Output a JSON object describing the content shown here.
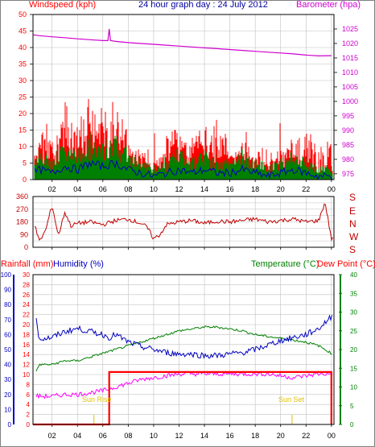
{
  "colors": {
    "wind": "#ff0000",
    "gust_green": "#008000",
    "wind_avg": "#0000c0",
    "barometer": "#d000d0",
    "direction": "#c00000",
    "rain": "#ff0000",
    "humidity": "#0000c0",
    "temperature": "#008000",
    "dewpoint": "#ff00ff",
    "sun": "#e0c000",
    "grid": "#c0c0c0",
    "axis": "#000000"
  },
  "header": {
    "wind_label": "Windspeed (kph)",
    "title": "24 hour graph day : 24 July 2012",
    "baro_label": "Barometer (hpa)"
  },
  "direction_letters": [
    "S",
    "E",
    "N",
    "W",
    "S"
  ],
  "footer_labels": {
    "rain": "Rainfall (mm)",
    "humidity": "Humidity (%)",
    "temperature": "Temperature (°C)",
    "dewpoint": "Dew Point (°C)"
  },
  "sun_labels": {
    "rise": "Sun Rise",
    "set": "Sun Set"
  },
  "chart_data": [
    {
      "type": "line",
      "name": "wind-barometer",
      "x_ticks": [
        "02",
        "04",
        "06",
        "08",
        "10",
        "12",
        "14",
        "16",
        "18",
        "20",
        "22",
        "00"
      ],
      "x_tick_hours": [
        2,
        4,
        6,
        8,
        10,
        12,
        14,
        16,
        18,
        20,
        22,
        24
      ],
      "xlim": [
        0.5,
        24.2
      ],
      "ylim_left": [
        0,
        50
      ],
      "yticks_left": [
        0,
        5,
        10,
        15,
        20,
        25,
        30,
        35,
        40,
        45,
        50
      ],
      "ylim_right": [
        973,
        1030
      ],
      "yticks_right": [
        975,
        980,
        985,
        990,
        995,
        1000,
        1005,
        1010,
        1015,
        1020,
        1025
      ],
      "grid": true,
      "barometer": {
        "hours": [
          0.5,
          1,
          2,
          3,
          4,
          5,
          6,
          6.4,
          6.5,
          6.6,
          7,
          8,
          9,
          10,
          11,
          12,
          13,
          14,
          15,
          16,
          17,
          18,
          19,
          20,
          21,
          22,
          23,
          24
        ],
        "values": [
          1023,
          1022.7,
          1022.3,
          1022,
          1021.6,
          1021.3,
          1021,
          1021,
          1025,
          1021,
          1020.7,
          1020.3,
          1020,
          1019.7,
          1019.4,
          1019.1,
          1018.8,
          1018.5,
          1018.2,
          1017.9,
          1017.6,
          1017.3,
          1017.0,
          1016.7,
          1016.4,
          1016.0,
          1015.7,
          1015.8
        ]
      },
      "wind_peak_kph": 26,
      "wind_avg_hours": [
        0.5,
        1,
        2,
        3,
        4,
        5,
        6,
        7,
        8,
        9,
        10,
        11,
        12,
        13,
        14,
        15,
        16,
        17,
        18,
        19,
        20,
        21,
        22,
        23,
        24
      ],
      "wind_avg_kph": [
        2,
        3,
        2,
        4,
        3,
        5,
        4,
        5,
        3,
        2,
        1,
        2,
        3,
        2,
        3,
        2,
        2,
        3,
        2,
        1,
        2,
        3,
        2,
        1,
        1
      ]
    },
    {
      "type": "line",
      "name": "wind-direction",
      "ylim": [
        0,
        360
      ],
      "yticks": [
        0,
        45,
        90,
        135,
        180,
        225,
        270,
        315,
        360
      ],
      "hours": [
        0.5,
        1,
        1.5,
        2,
        2.5,
        3,
        3.5,
        4,
        5,
        6,
        7,
        8,
        9,
        9.5,
        10,
        10.5,
        11,
        12,
        13,
        14,
        15,
        16,
        17,
        18,
        19,
        20,
        21,
        22,
        23,
        23.5,
        24
      ],
      "degrees": [
        200,
        40,
        120,
        300,
        80,
        250,
        150,
        170,
        180,
        160,
        190,
        200,
        170,
        140,
        60,
        90,
        160,
        180,
        190,
        170,
        185,
        180,
        190,
        200,
        180,
        190,
        200,
        180,
        190,
        320,
        60
      ]
    },
    {
      "type": "line",
      "name": "temperature-humidity-rain",
      "yticks_rain": [
        0,
        2,
        4,
        6,
        8,
        10,
        12,
        14,
        16,
        18,
        20,
        22,
        24,
        26,
        28,
        30
      ],
      "ylim_rain": [
        0,
        30
      ],
      "yticks_humidity": [
        0,
        10,
        20,
        30,
        40,
        50,
        60,
        70,
        80,
        90,
        100
      ],
      "ylim_humidity": [
        0,
        100
      ],
      "yticks_temp": [
        0,
        5,
        10,
        15,
        20,
        25,
        30,
        35,
        40
      ],
      "ylim_temp": [
        0,
        40
      ],
      "humidity": {
        "hours": [
          0.5,
          1,
          2,
          3,
          4,
          5,
          6,
          6.5,
          7,
          8,
          9,
          10,
          11,
          12,
          13,
          14,
          15,
          16,
          17,
          18,
          19,
          20,
          21,
          22,
          23,
          24
        ],
        "values": [
          82,
          57,
          58,
          62,
          64,
          62,
          60,
          58,
          60,
          55,
          52,
          50,
          48,
          47,
          47,
          46,
          46,
          47,
          48,
          50,
          53,
          56,
          58,
          60,
          64,
          72
        ]
      },
      "temperature": {
        "hours": [
          0.5,
          1,
          2,
          3,
          4,
          5,
          6,
          7,
          8,
          9,
          10,
          11,
          12,
          13,
          14,
          15,
          16,
          17,
          18,
          19,
          20,
          21,
          22,
          23,
          24
        ],
        "values": [
          12,
          16,
          16,
          17,
          17,
          18,
          19,
          20,
          21,
          22,
          23,
          24,
          25,
          25.5,
          26,
          26,
          25.5,
          25,
          24,
          23.5,
          23,
          22.5,
          22,
          21,
          19
        ]
      },
      "dewpoint": {
        "hours": [
          0.5,
          1,
          2,
          3,
          4,
          5,
          6,
          7,
          8,
          9,
          10,
          11,
          12,
          13,
          14,
          15,
          16,
          17,
          18,
          19,
          20,
          21,
          22,
          23,
          24
        ],
        "values": [
          8,
          7.5,
          7.5,
          8,
          8,
          8.5,
          9,
          10,
          11,
          12,
          12.5,
          13,
          13.5,
          13.5,
          13.5,
          13.5,
          13.5,
          13.5,
          13.5,
          13.5,
          13,
          12.5,
          13,
          13.5,
          13.5
        ]
      },
      "rain": {
        "hours": [
          0.5,
          6.5,
          6.5,
          24,
          24
        ],
        "values": [
          0,
          0,
          10.5,
          10.5,
          0
        ]
      },
      "sun_rise_hour": 5.3,
      "sun_set_hour": 20.9
    }
  ]
}
